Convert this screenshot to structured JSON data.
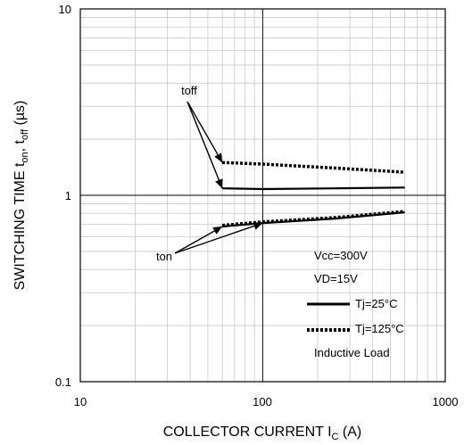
{
  "chart_data": {
    "type": "line",
    "x_scale": "log",
    "y_scale": "log",
    "xlim": [
      10,
      1000
    ],
    "ylim": [
      0.1,
      10
    ],
    "grid": true,
    "x_ticks": [
      "10",
      "100",
      "1000"
    ],
    "y_ticks": [
      "10",
      "1",
      "0.1"
    ],
    "xlabel": {
      "main": "COLLECTOR CURRENT I",
      "sub": "C",
      "tail": " (A)"
    },
    "ylabel": {
      "main": "SWITCHING TIME t",
      "sub1": "on",
      "mid": ", t",
      "sub2": "off",
      "tail": " (µs)"
    },
    "series": [
      {
        "curve": "toff",
        "condition": "Tj=25°C",
        "style": "solid",
        "x": [
          60,
          100,
          250,
          600
        ],
        "y": [
          1.09,
          1.08,
          1.09,
          1.1
        ]
      },
      {
        "curve": "toff",
        "condition": "Tj=125°C",
        "style": "dotted",
        "x": [
          60,
          100,
          250,
          600
        ],
        "y": [
          1.5,
          1.47,
          1.4,
          1.33
        ]
      },
      {
        "curve": "ton",
        "condition": "Tj=25°C",
        "style": "solid",
        "x": [
          60,
          100,
          250,
          600
        ],
        "y": [
          0.68,
          0.71,
          0.75,
          0.81
        ]
      },
      {
        "curve": "ton",
        "condition": "Tj=125°C",
        "style": "dotted",
        "x": [
          60,
          100,
          250,
          600
        ],
        "y": [
          0.69,
          0.72,
          0.76,
          0.82
        ]
      }
    ],
    "annotations": [
      {
        "text": "toff",
        "targets": [
          [
            60,
            1.5
          ],
          [
            60,
            1.09
          ]
        ]
      },
      {
        "text": "ton",
        "targets": [
          [
            60,
            0.68
          ],
          [
            100,
            0.71
          ]
        ]
      }
    ],
    "legend": {
      "position": "bottom-right",
      "lines": [
        "Vcc=300V",
        "VD=15V"
      ],
      "entries": [
        {
          "label": "Tj=25°C",
          "style": "solid"
        },
        {
          "label": "Tj=125°C",
          "style": "dotted"
        }
      ],
      "footer": "Inductive Load"
    }
  }
}
